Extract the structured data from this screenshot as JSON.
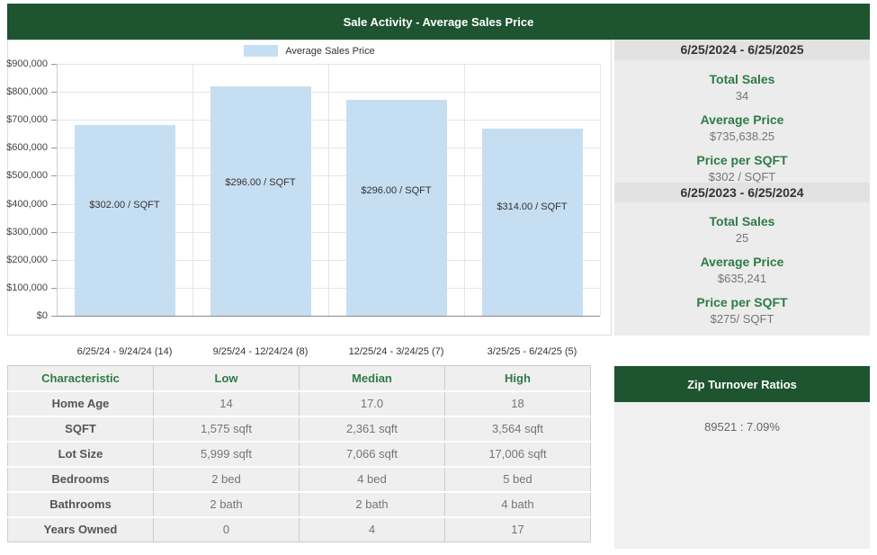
{
  "header": {
    "title": "Sale Activity - Average Sales Price"
  },
  "chart_data": {
    "type": "bar",
    "legend": "Average Sales Price",
    "categories": [
      "6/25/24 - 9/24/24 (14)",
      "9/25/24 - 12/24/24 (8)",
      "12/25/24 - 3/24/25 (7)",
      "3/25/25 - 6/24/25 (5)"
    ],
    "values": [
      680000,
      820000,
      770000,
      670000
    ],
    "bar_labels": [
      "$302.00 / SQFT",
      "$296.00 / SQFT",
      "$296.00 / SQFT",
      "$314.00 / SQFT"
    ],
    "ylabel": "",
    "xlabel": "",
    "ylim": [
      0,
      900000
    ],
    "ytick_step": 100000,
    "grid": true,
    "legend_position": "top-center",
    "bar_color": "#C6DEF2"
  },
  "stats": {
    "sections": [
      {
        "range": "6/25/2024 - 6/25/2025",
        "items": [
          {
            "label": "Total Sales",
            "value": "34"
          },
          {
            "label": "Average Price",
            "value": "$735,638.25"
          },
          {
            "label": "Price per SQFT",
            "value": "$302 / SQFT"
          }
        ]
      },
      {
        "range": "6/25/2023 - 6/25/2024",
        "items": [
          {
            "label": "Total Sales",
            "value": "25"
          },
          {
            "label": "Average Price",
            "value": "$635,241"
          },
          {
            "label": "Price per SQFT",
            "value": "$275/ SQFT"
          }
        ]
      }
    ]
  },
  "table": {
    "headers": [
      "Characteristic",
      "Low",
      "Median",
      "High"
    ],
    "rows": [
      [
        "Home Age",
        "14",
        "17.0",
        "18"
      ],
      [
        "SQFT",
        "1,575 sqft",
        "2,361 sqft",
        "3,564 sqft"
      ],
      [
        "Lot Size",
        "5,999 sqft",
        "7,066 sqft",
        "17,006 sqft"
      ],
      [
        "Bedrooms",
        "2 bed",
        "4 bed",
        "5 bed"
      ],
      [
        "Bathrooms",
        "2 bath",
        "2 bath",
        "4 bath"
      ],
      [
        "Years Owned",
        "0",
        "4",
        "17"
      ]
    ]
  },
  "zip_turnover": {
    "title": "Zip Turnover Ratios",
    "value": "89521 : 7.09%"
  },
  "colors": {
    "green_dark": "#1E5430",
    "green_text": "#2E7B47",
    "bar_fill": "#C6DEF2",
    "panel_gray": "#ececec",
    "strip_gray": "#e2e2e2"
  }
}
